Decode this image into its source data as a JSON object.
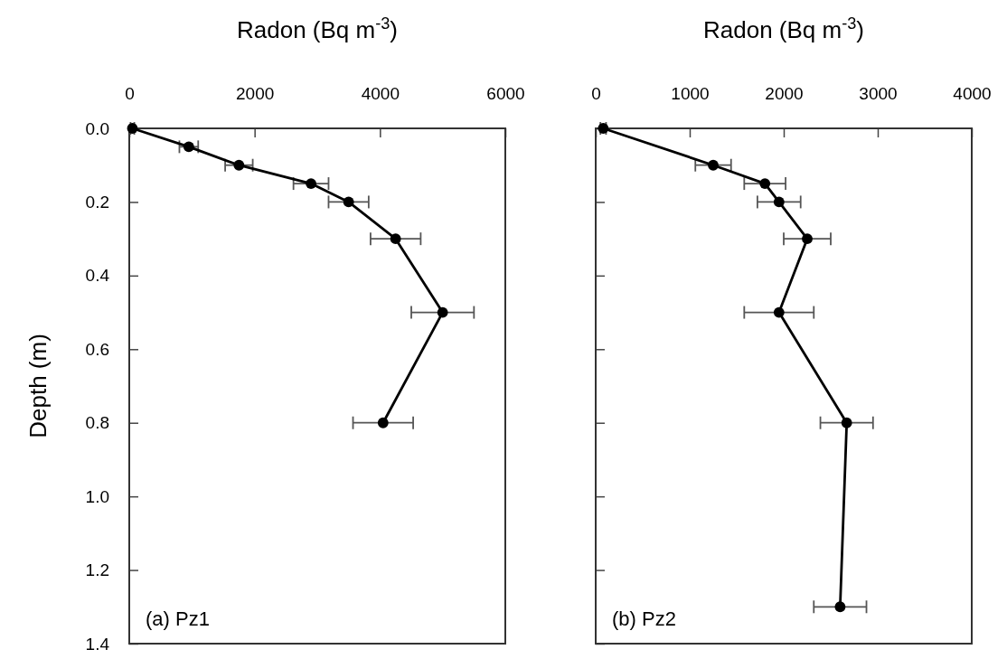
{
  "chart_data": [
    {
      "type": "line",
      "xlabel": "Radon (Bq  m$^{-3}$)",
      "ylabel": "Depth (m)",
      "annotations": [
        "(a) Pz1"
      ],
      "xlim": [
        0,
        6000
      ],
      "xticks": [
        0,
        2000,
        4000,
        6000
      ],
      "ylim": [
        1.4,
        0
      ],
      "yticks": [
        {
          "value": 0,
          "label": "0.0"
        },
        {
          "value": 0.2,
          "label": "0.2"
        },
        {
          "value": 0.4,
          "label": "0.4"
        },
        {
          "value": 0.6,
          "label": "0.6"
        },
        {
          "value": 0.8,
          "label": "0.8"
        },
        {
          "value": 1,
          "label": "1.0"
        },
        {
          "value": 1.2,
          "label": "1.2"
        },
        {
          "value": 1.4,
          "label": "1.4"
        }
      ],
      "marker": "circle",
      "line_style": "solid",
      "series": [
        {
          "color": "#000000",
          "x": [
            50,
            950,
            1750,
            2900,
            3500,
            4250,
            5000,
            4050
          ],
          "values": [
            0,
            0.05,
            0.1,
            0.15,
            0.2,
            0.3,
            0.5,
            0.8
          ],
          "xerrors": [
            30,
            150,
            220,
            280,
            320,
            400,
            500,
            480
          ]
        }
      ]
    },
    {
      "type": "line",
      "xlabel": "Radon (Bq  m$^{-3}$)",
      "annotations": [
        "(b) Pz2"
      ],
      "xlim": [
        0,
        4000
      ],
      "xticks": [
        0,
        1000,
        2000,
        3000,
        4000
      ],
      "ylim": [
        1.4,
        0
      ],
      "yticks": [
        0,
        0.2,
        0.4,
        0.6,
        0.8,
        1,
        1.2,
        1.4
      ],
      "tick_labels": "x",
      "marker": "circle",
      "line_style": "solid",
      "series": [
        {
          "color": "#000000",
          "x": [
            80,
            1250,
            1800,
            1950,
            2250,
            1950,
            2670,
            2600
          ],
          "values": [
            0,
            0.1,
            0.15,
            0.2,
            0.3,
            0.5,
            0.8,
            1.3
          ],
          "xerrors": [
            30,
            190,
            220,
            230,
            250,
            370,
            280,
            280
          ]
        }
      ]
    }
  ]
}
